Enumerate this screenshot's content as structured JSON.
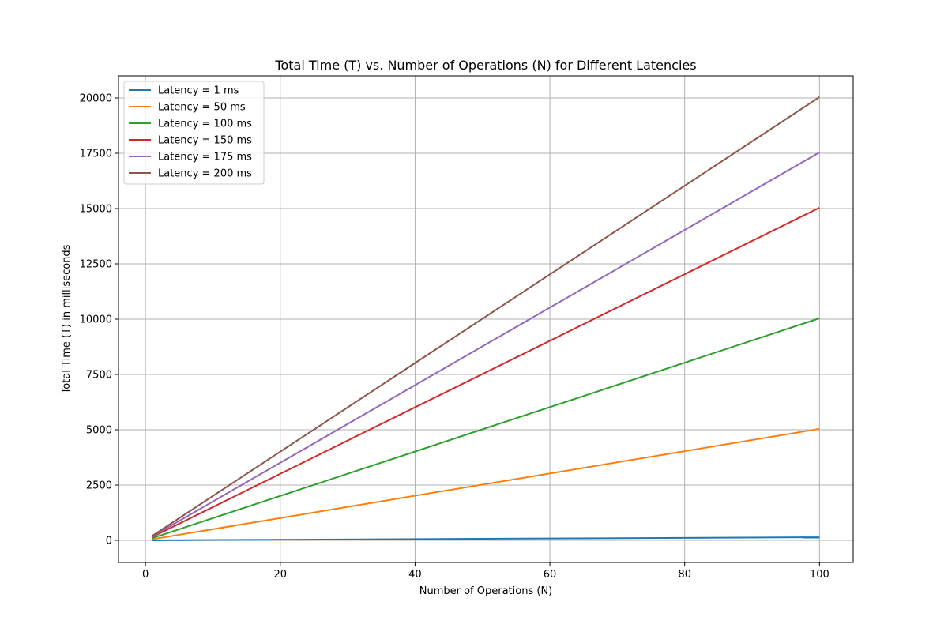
{
  "chart_data": {
    "type": "line",
    "title": "Total Time (T) vs. Number of Operations (N) for Different Latencies",
    "xlabel": "Number of Operations (N)",
    "ylabel": "Total Time (T) in milliseconds",
    "xlim": [
      -4,
      105
    ],
    "ylim": [
      -1000,
      21000
    ],
    "xticks": [
      0,
      20,
      40,
      60,
      80,
      100
    ],
    "yticks": [
      0,
      2500,
      5000,
      7500,
      10000,
      12500,
      15000,
      17500,
      20000
    ],
    "grid": true,
    "legend_position": "top-left",
    "series": [
      {
        "name": "Latency = 1 ms",
        "color": "#1f77b4",
        "x": [
          1,
          100
        ],
        "y": [
          2,
          140
        ]
      },
      {
        "name": "Latency = 50 ms",
        "color": "#ff7f0e",
        "x": [
          1,
          100
        ],
        "y": [
          51,
          5040
        ]
      },
      {
        "name": "Latency = 100 ms",
        "color": "#2ca02c",
        "x": [
          1,
          100
        ],
        "y": [
          101,
          10040
        ]
      },
      {
        "name": "Latency = 150 ms",
        "color": "#d62728",
        "x": [
          1,
          100
        ],
        "y": [
          151,
          15040
        ]
      },
      {
        "name": "Latency = 175 ms",
        "color": "#9467bd",
        "x": [
          1,
          100
        ],
        "y": [
          176,
          17540
        ]
      },
      {
        "name": "Latency = 200 ms",
        "color": "#8c564b",
        "x": [
          1,
          100
        ],
        "y": [
          201,
          20040
        ]
      }
    ]
  }
}
